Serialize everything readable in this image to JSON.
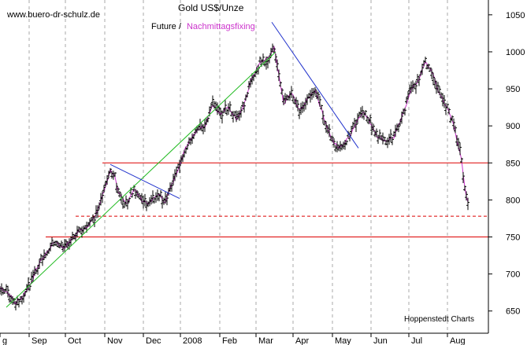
{
  "chart_data": {
    "type": "line",
    "title": "Gold US$/Unze",
    "subtitle_prefix": "Future /",
    "subtitle_highlight": "Nachmittagsfixing",
    "watermark": "www.buero-dr-schulz.de",
    "source": "Hoppenstedt Charts",
    "x_ticks": [
      {
        "label": "g",
        "pos": 0
      },
      {
        "label": "Sep",
        "pos": 37
      },
      {
        "label": "Oct",
        "pos": 83
      },
      {
        "label": "Nov",
        "pos": 133
      },
      {
        "label": "Dec",
        "pos": 182
      },
      {
        "label": "2008",
        "pos": 229
      },
      {
        "label": "Feb",
        "pos": 279
      },
      {
        "label": "Mar",
        "pos": 325
      },
      {
        "label": "Apr",
        "pos": 372
      },
      {
        "label": "May",
        "pos": 422
      },
      {
        "label": "Jun",
        "pos": 471
      },
      {
        "label": "Jul",
        "pos": 519
      },
      {
        "label": "Aug",
        "pos": 568
      }
    ],
    "y_ticks": [
      650,
      700,
      750,
      800,
      850,
      900,
      950,
      1000,
      1050
    ],
    "ylim": [
      620,
      1070
    ],
    "xlim": [
      0,
      620
    ],
    "grid": {
      "vertical": true,
      "horizontal": false
    },
    "colors": {
      "price": "#000000",
      "fixing": "#cc33cc",
      "support": "#dd0000",
      "uptrend": "#22bb22",
      "downtrend": "#2233cc",
      "grid": "#aaaaaa",
      "highlight_text": "#cc33cc"
    },
    "series_points": [
      [
        0,
        682
      ],
      [
        10,
        675
      ],
      [
        20,
        660
      ],
      [
        30,
        672
      ],
      [
        40,
        690
      ],
      [
        50,
        715
      ],
      [
        60,
        730
      ],
      [
        70,
        745
      ],
      [
        80,
        735
      ],
      [
        90,
        745
      ],
      [
        100,
        758
      ],
      [
        110,
        765
      ],
      [
        120,
        775
      ],
      [
        130,
        805
      ],
      [
        140,
        840
      ],
      [
        145,
        835
      ],
      [
        150,
        808
      ],
      [
        160,
        795
      ],
      [
        170,
        815
      ],
      [
        180,
        800
      ],
      [
        190,
        795
      ],
      [
        200,
        808
      ],
      [
        210,
        798
      ],
      [
        220,
        825
      ],
      [
        230,
        855
      ],
      [
        240,
        880
      ],
      [
        250,
        895
      ],
      [
        260,
        900
      ],
      [
        270,
        930
      ],
      [
        280,
        915
      ],
      [
        290,
        925
      ],
      [
        300,
        910
      ],
      [
        310,
        930
      ],
      [
        320,
        965
      ],
      [
        330,
        985
      ],
      [
        340,
        990
      ],
      [
        348,
        1005
      ],
      [
        355,
        960
      ],
      [
        360,
        930
      ],
      [
        370,
        945
      ],
      [
        380,
        920
      ],
      [
        390,
        935
      ],
      [
        400,
        950
      ],
      [
        410,
        915
      ],
      [
        420,
        885
      ],
      [
        425,
        875
      ],
      [
        430,
        870
      ],
      [
        440,
        880
      ],
      [
        450,
        900
      ],
      [
        460,
        920
      ],
      [
        470,
        905
      ],
      [
        480,
        885
      ],
      [
        490,
        880
      ],
      [
        500,
        885
      ],
      [
        510,
        910
      ],
      [
        520,
        945
      ],
      [
        530,
        960
      ],
      [
        540,
        985
      ],
      [
        548,
        975
      ],
      [
        555,
        950
      ],
      [
        565,
        930
      ],
      [
        575,
        905
      ],
      [
        585,
        860
      ],
      [
        590,
        815
      ],
      [
        595,
        790
      ]
    ],
    "horizontal_lines": [
      {
        "value": 850,
        "x_start": 130,
        "x_end": 620,
        "style": "solid"
      },
      {
        "value": 778,
        "x_start": 96,
        "x_end": 620,
        "style": "dashed"
      },
      {
        "value": 750,
        "x_start": 58,
        "x_end": 620,
        "style": "solid"
      }
    ],
    "trend_lines": [
      {
        "from": [
          8,
          655
        ],
        "to": [
          350,
          1000
        ],
        "color": "uptrend"
      },
      {
        "from": [
          140,
          848
        ],
        "to": [
          228,
          802
        ],
        "color": "downtrend"
      },
      {
        "from": [
          345,
          1040
        ],
        "to": [
          455,
          870
        ],
        "color": "downtrend"
      }
    ]
  }
}
